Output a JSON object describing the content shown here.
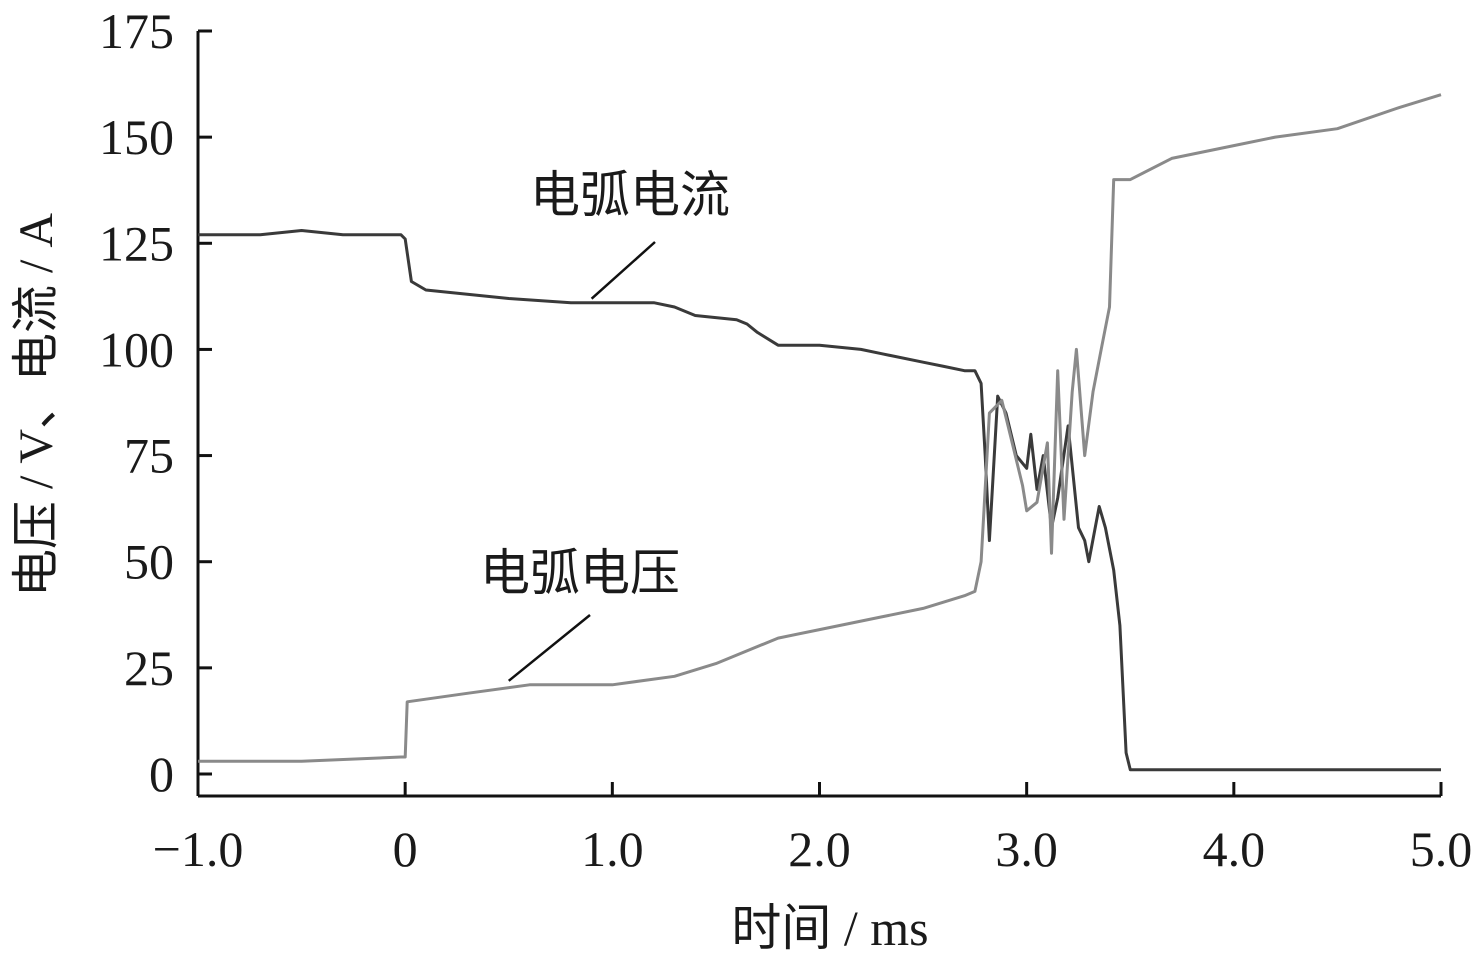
{
  "chart_data": {
    "type": "line",
    "title": "",
    "xlabel": "时间 / ms",
    "ylabel": "电压 / V、电流 / A",
    "xlim": [
      -1.0,
      5.0
    ],
    "ylim": [
      0,
      175
    ],
    "x_ticks": [
      -1.0,
      0,
      1.0,
      2.0,
      3.0,
      4.0,
      5.0
    ],
    "x_tick_labels": [
      "−1.0",
      "0",
      "1.0",
      "2.0",
      "3.0",
      "4.0",
      "5.0"
    ],
    "y_ticks": [
      0,
      25,
      50,
      75,
      100,
      125,
      150,
      175
    ],
    "y_tick_labels": [
      "0",
      "25",
      "50",
      "75",
      "100",
      "125",
      "150",
      "175"
    ],
    "grid": false,
    "series": [
      {
        "name": "电弧电流",
        "color": "#3a3a3a",
        "annotation_at": [
          0.9,
          111
        ],
        "x": [
          -1.0,
          -0.7,
          -0.5,
          -0.3,
          -0.02,
          0.0,
          0.03,
          0.1,
          0.3,
          0.5,
          0.8,
          1.0,
          1.2,
          1.3,
          1.4,
          1.6,
          1.65,
          1.7,
          1.8,
          2.0,
          2.2,
          2.3,
          2.5,
          2.6,
          2.7,
          2.75,
          2.78,
          2.8,
          2.82,
          2.86,
          2.9,
          2.95,
          3.0,
          3.02,
          3.05,
          3.08,
          3.12,
          3.15,
          3.2,
          3.25,
          3.28,
          3.3,
          3.35,
          3.38,
          3.42,
          3.45,
          3.48,
          3.5,
          4.0,
          4.5,
          5.0
        ],
        "y": [
          127,
          127,
          128,
          127,
          127,
          126,
          116,
          114,
          113,
          112,
          111,
          111,
          111,
          110,
          108,
          107,
          106,
          104,
          101,
          101,
          100,
          99,
          97,
          96,
          95,
          95,
          92,
          75,
          55,
          89,
          85,
          75,
          72,
          80,
          67,
          75,
          58,
          65,
          82,
          58,
          55,
          50,
          63,
          58,
          48,
          35,
          5,
          1,
          1,
          1,
          1
        ]
      },
      {
        "name": "电弧电压",
        "color": "#8a8a8a",
        "annotation_at": [
          0.5,
          21
        ],
        "x": [
          -1.0,
          -0.5,
          -0.02,
          0.0,
          0.01,
          0.3,
          0.6,
          1.0,
          1.3,
          1.5,
          1.8,
          2.0,
          2.3,
          2.5,
          2.7,
          2.75,
          2.78,
          2.82,
          2.88,
          2.92,
          2.98,
          3.0,
          3.05,
          3.1,
          3.12,
          3.15,
          3.18,
          3.22,
          3.24,
          3.28,
          3.32,
          3.36,
          3.4,
          3.42,
          3.5,
          3.7,
          3.9,
          4.0,
          4.2,
          4.5,
          4.8,
          5.0
        ],
        "y": [
          3,
          3,
          4,
          4,
          17,
          19,
          21,
          21,
          23,
          26,
          32,
          34,
          37,
          39,
          42,
          43,
          50,
          85,
          88,
          80,
          68,
          62,
          64,
          78,
          52,
          95,
          60,
          90,
          100,
          75,
          90,
          100,
          110,
          140,
          140,
          145,
          147,
          148,
          150,
          152,
          157,
          160
        ]
      }
    ]
  }
}
